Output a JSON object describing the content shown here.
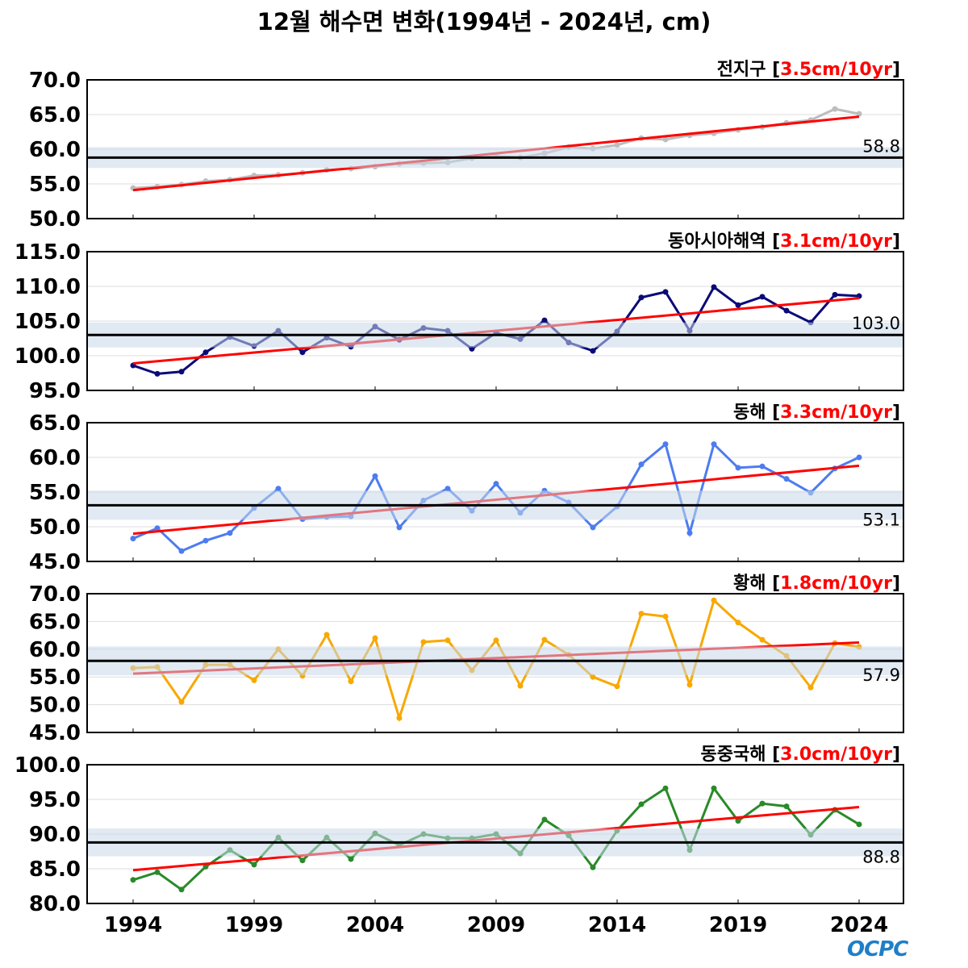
{
  "title": "12월 해수면 변화(1994년 - 2024년, cm)",
  "logo": "OCPC",
  "chart_data": [
    {
      "type": "line",
      "name": "전지구",
      "trend_label": "3.5cm/10yr",
      "mean": 58.8,
      "mean_label": "58.8",
      "band": 1.5,
      "ylim": [
        50,
        70
      ],
      "yticks": [
        "50.0",
        "55.0",
        "60.0",
        "65.0",
        "70.0"
      ],
      "color": "#bdbdbd",
      "trend": [
        54.1,
        64.7
      ],
      "label_pos": "above",
      "values": [
        54.4,
        54.6,
        54.9,
        55.4,
        55.6,
        56.2,
        56.3,
        56.6,
        57.0,
        57.2,
        57.5,
        57.9,
        58.0,
        58.1,
        58.7,
        59.0,
        58.8,
        59.4,
        60.3,
        60.1,
        60.6,
        61.6,
        61.4,
        62.0,
        62.3,
        62.8,
        63.2,
        63.8,
        64.2,
        65.8,
        65.1
      ]
    },
    {
      "type": "line",
      "name": "동아시아해역",
      "trend_label": "3.1cm/10yr",
      "mean": 103.0,
      "mean_label": "103.0",
      "band": 1.8,
      "ylim": [
        95,
        115
      ],
      "yticks": [
        "95.0",
        "100.0",
        "105.0",
        "110.0",
        "115.0"
      ],
      "color": "#0a0a78",
      "trend": [
        98.9,
        108.3
      ],
      "label_pos": "above",
      "values": [
        98.6,
        97.4,
        97.7,
        100.5,
        102.7,
        101.4,
        103.6,
        100.5,
        102.6,
        101.3,
        104.2,
        102.3,
        104.0,
        103.6,
        101.0,
        103.3,
        102.4,
        105.1,
        101.9,
        100.7,
        103.5,
        108.4,
        109.2,
        103.6,
        109.9,
        107.3,
        108.5,
        106.5,
        104.8,
        108.8,
        108.6
      ]
    },
    {
      "type": "line",
      "name": "동해",
      "trend_label": "3.3cm/10yr",
      "mean": 53.1,
      "mean_label": "53.1",
      "band": 2.1,
      "ylim": [
        45,
        65
      ],
      "yticks": [
        "45.0",
        "50.0",
        "55.0",
        "60.0",
        "65.0"
      ],
      "color": "#4d7cf0",
      "trend": [
        49.0,
        58.8
      ],
      "label_pos": "below",
      "values": [
        48.3,
        49.8,
        46.5,
        48.0,
        49.1,
        52.7,
        55.5,
        51.1,
        51.4,
        51.5,
        57.3,
        49.9,
        53.8,
        55.5,
        52.3,
        56.2,
        52.0,
        55.2,
        53.5,
        49.9,
        52.9,
        59.0,
        61.9,
        49.1,
        61.9,
        58.5,
        58.7,
        56.9,
        54.9,
        58.4,
        60.0
      ]
    },
    {
      "type": "line",
      "name": "황해",
      "trend_label": "1.8cm/10yr",
      "mean": 57.9,
      "mean_label": "57.9",
      "band": 2.6,
      "ylim": [
        45,
        70
      ],
      "yticks": [
        "45.0",
        "50.0",
        "55.0",
        "60.0",
        "65.0",
        "70.0"
      ],
      "color": "#f8a800",
      "trend": [
        55.6,
        61.2
      ],
      "label_pos": "below",
      "values": [
        56.6,
        56.8,
        50.5,
        57.2,
        57.2,
        54.4,
        60.0,
        55.2,
        62.6,
        54.2,
        62.0,
        47.6,
        61.3,
        61.6,
        56.2,
        61.6,
        53.4,
        61.7,
        59.0,
        55.0,
        53.3,
        66.4,
        65.9,
        53.6,
        68.8,
        64.8,
        61.7,
        58.8,
        53.1,
        61.1,
        60.4
      ]
    },
    {
      "type": "line",
      "name": "동중국해",
      "trend_label": "3.0cm/10yr",
      "mean": 88.8,
      "mean_label": "88.8",
      "band": 2.0,
      "ylim": [
        80,
        100
      ],
      "yticks": [
        "80.0",
        "85.0",
        "90.0",
        "95.0",
        "100.0"
      ],
      "color": "#2a8a2a",
      "trend": [
        84.8,
        93.9
      ],
      "label_pos": "below",
      "values": [
        83.4,
        84.5,
        82.0,
        85.3,
        87.7,
        85.6,
        89.5,
        86.2,
        89.5,
        86.4,
        90.1,
        88.4,
        90.0,
        89.4,
        89.4,
        90.0,
        87.2,
        92.1,
        89.8,
        85.2,
        90.5,
        94.3,
        96.6,
        87.7,
        96.6,
        91.9,
        94.4,
        94.0,
        89.9,
        93.5,
        91.4
      ]
    }
  ],
  "x_start": 1994,
  "xticks": [
    "1994",
    "1999",
    "2004",
    "2009",
    "2014",
    "2019",
    "2024"
  ]
}
